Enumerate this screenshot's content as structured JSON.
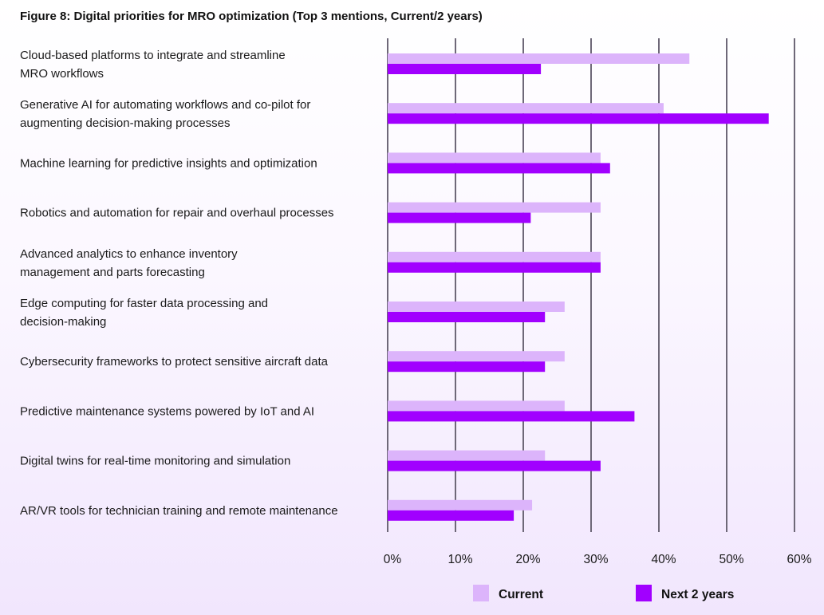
{
  "chart_data": {
    "type": "bar",
    "orientation": "horizontal",
    "title": "Figure 8: Digital priorities for MRO optimization (Top 3 mentions, Current/2 years)",
    "xlabel": "",
    "ylabel": "",
    "xlim": [
      0,
      60
    ],
    "xticks": [
      "0%",
      "10%",
      "20%",
      "30%",
      "40%",
      "50%",
      "60%"
    ],
    "grid": true,
    "legend_position": "bottom",
    "categories": [
      [
        "Cloud-based platforms to integrate and streamline",
        "MRO workflows"
      ],
      [
        "Generative AI for automating workflows and co-pilot for",
        "augmenting decision-making processes"
      ],
      [
        "Machine learning for predictive insights and optimization"
      ],
      [
        "Robotics and automation for repair and overhaul processes"
      ],
      [
        "Advanced analytics to enhance inventory",
        "management and parts forecasting"
      ],
      [
        "Edge computing for faster data processing and",
        "decision-making"
      ],
      [
        "Cybersecurity frameworks to protect sensitive aircraft data"
      ],
      [
        "Predictive maintenance systems powered by IoT and AI"
      ],
      [
        "Digital twins for real-time monitoring and simulation"
      ],
      [
        "AR/VR tools for technician training and remote maintenance"
      ]
    ],
    "series": [
      {
        "name": "Current",
        "color": "#dcb4fb",
        "values": [
          44.5,
          40.7,
          31.4,
          31.4,
          31.4,
          26.1,
          26.1,
          26.1,
          23.2,
          21.3
        ]
      },
      {
        "name": "Next 2 years",
        "color": "#a100ff",
        "values": [
          22.6,
          56.2,
          32.8,
          21.1,
          31.4,
          23.2,
          23.2,
          36.4,
          31.4,
          18.6
        ]
      }
    ]
  }
}
